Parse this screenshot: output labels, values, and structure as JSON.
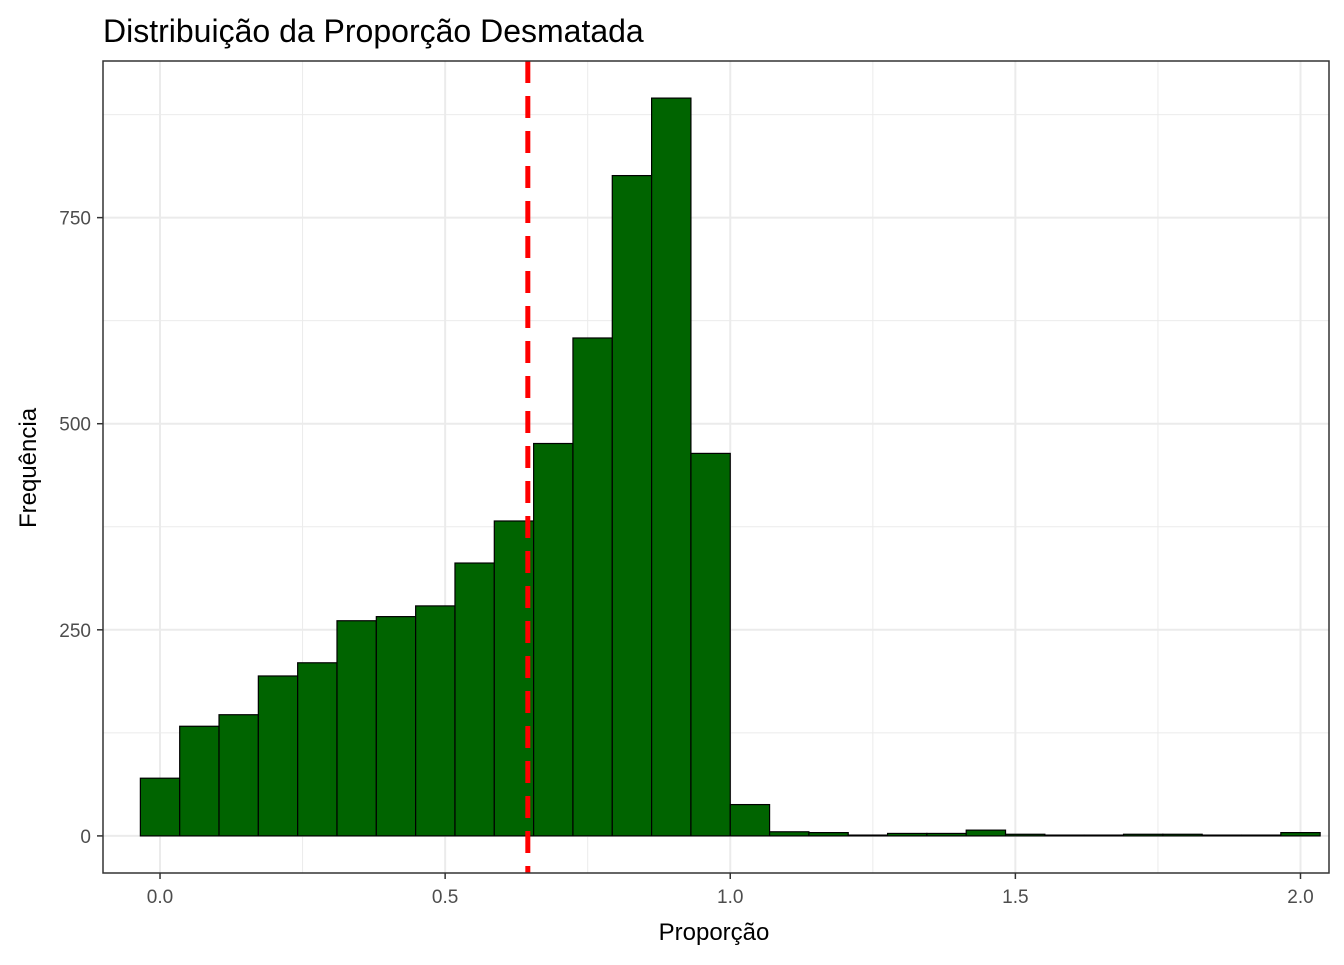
{
  "chart_data": {
    "type": "bar",
    "title": "Distribuição da Proporção Desmatada",
    "xlabel": "Proporção",
    "ylabel": "Frequência",
    "bin_width": 0.0689655,
    "bin_start": -0.0344828,
    "counts": [
      70,
      133,
      147,
      194,
      210,
      261,
      266,
      279,
      331,
      382,
      476,
      604,
      801,
      895,
      464,
      38,
      5,
      4,
      1,
      3,
      3,
      7,
      2,
      1,
      1,
      2,
      2,
      1,
      1,
      4
    ],
    "xlim": [
      -0.1,
      2.05
    ],
    "ylim": [
      -45,
      940
    ],
    "x_ticks": [
      0.0,
      0.5,
      1.0,
      1.5,
      2.0
    ],
    "x_tick_labels": [
      "0.0",
      "0.5",
      "1.0",
      "1.5",
      "2.0"
    ],
    "y_ticks": [
      0,
      250,
      500,
      750
    ],
    "y_tick_labels": [
      "0",
      "250",
      "500",
      "750"
    ],
    "reference_line": {
      "x": 0.645,
      "style": "dashed",
      "color": "#ff0000"
    },
    "grid": true,
    "colors": {
      "bar_fill": "#006400",
      "bar_stroke": "#000000",
      "grid": "#ebebeb",
      "panel_border": "#333333"
    }
  }
}
